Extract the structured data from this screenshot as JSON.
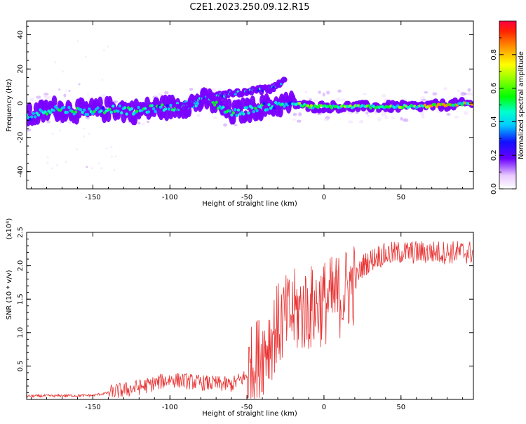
{
  "title": "C2E1.2023.250.09.12.R15",
  "chart_data": [
    {
      "type": "heatmap",
      "xlabel": "Height of straight line (km)",
      "ylabel": "Frequency (Hz)",
      "xlim": [
        -193,
        97
      ],
      "ylim": [
        -50,
        48
      ],
      "x_ticks": [
        -150,
        -100,
        -50,
        0,
        50
      ],
      "y_ticks": [
        -40,
        -20,
        0,
        20,
        40
      ],
      "colorbar": {
        "label": "Normalized spectral amplitude",
        "range": [
          0,
          1
        ],
        "ticks": [
          0.0,
          0.2,
          0.4,
          0.6,
          0.8
        ]
      },
      "ridge_main": [
        [
          -193,
          -8
        ],
        [
          -175,
          -3
        ],
        [
          -155,
          -5
        ],
        [
          -135,
          -3
        ],
        [
          -125,
          -5
        ],
        [
          -110,
          -3
        ],
        [
          -95,
          -2
        ],
        [
          -85,
          0
        ],
        [
          -75,
          2
        ],
        [
          -60,
          -6
        ],
        [
          -45,
          -3
        ],
        [
          -30,
          -1
        ],
        [
          -20,
          0
        ],
        [
          -10,
          -2
        ],
        [
          0,
          -2
        ],
        [
          30,
          -2
        ],
        [
          60,
          -2
        ],
        [
          97,
          0
        ]
      ],
      "ridge_upper": [
        [
          -95,
          -3
        ],
        [
          -80,
          2
        ],
        [
          -65,
          5
        ],
        [
          -50,
          7
        ],
        [
          -40,
          8
        ],
        [
          -35,
          8
        ],
        [
          -28,
          12
        ],
        [
          -25,
          14
        ]
      ]
    },
    {
      "type": "line",
      "xlabel": "Height of straight line (km)",
      "ylabel": "SNR (10 * v/v)",
      "y_multiplier": "(x10⁴)",
      "xlim": [
        -193,
        97
      ],
      "ylim": [
        0,
        2.5
      ],
      "x_ticks": [
        -150,
        -100,
        -50,
        0,
        50
      ],
      "y_ticks": [
        0.5,
        1.0,
        1.5,
        2.0,
        2.5
      ],
      "line_color": "#e83030",
      "trend": [
        [
          -193,
          0.05
        ],
        [
          -150,
          0.06
        ],
        [
          -140,
          0.1
        ],
        [
          -120,
          0.18
        ],
        [
          -100,
          0.3
        ],
        [
          -80,
          0.25
        ],
        [
          -60,
          0.22
        ],
        [
          -50,
          0.35
        ],
        [
          -40,
          0.7
        ],
        [
          -30,
          1.1
        ],
        [
          -20,
          1.3
        ],
        [
          -10,
          1.35
        ],
        [
          0,
          1.45
        ],
        [
          10,
          1.55
        ],
        [
          20,
          1.75
        ],
        [
          25,
          2.0
        ],
        [
          35,
          2.15
        ],
        [
          50,
          2.2
        ],
        [
          97,
          2.2
        ]
      ]
    }
  ]
}
